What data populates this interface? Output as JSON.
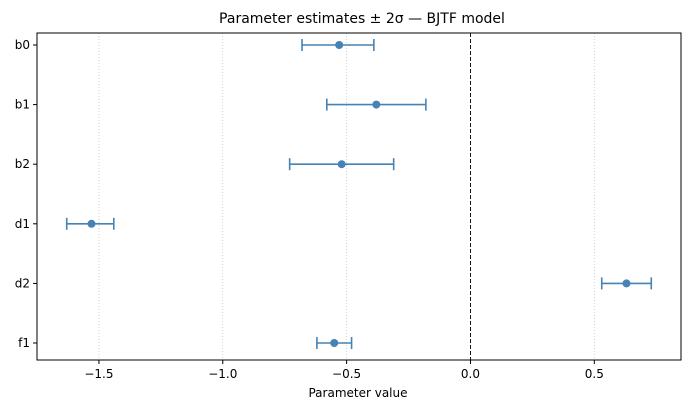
{
  "chart_data": {
    "type": "scatter",
    "title": "Parameter estimates ± 2σ  —  BJTF model",
    "xlabel": "Parameter value",
    "ylabel": "",
    "xlim": [
      -1.75,
      0.85
    ],
    "x_ticks": [
      -1.5,
      -1.0,
      -0.5,
      0.0,
      0.5
    ],
    "x_tick_labels": [
      "−1.5",
      "−1.0",
      "−0.5",
      "0.0",
      "0.5"
    ],
    "grid": "vertical dotted",
    "reference_line_x": 0.0,
    "categories": [
      "b0",
      "b1",
      "b2",
      "d1",
      "d2",
      "f1"
    ],
    "series": [
      {
        "estimates": [
          -0.53,
          -0.38,
          -0.52,
          -1.53,
          0.63,
          -0.55
        ],
        "lower": [
          -0.68,
          -0.58,
          -0.73,
          -1.63,
          0.53,
          -0.62
        ],
        "upper": [
          -0.39,
          -0.18,
          -0.31,
          -1.44,
          0.73,
          -0.48
        ]
      }
    ],
    "colors": {
      "marker": "#4682b4",
      "grid": "#c8c8c8",
      "reference": "#000000"
    }
  }
}
